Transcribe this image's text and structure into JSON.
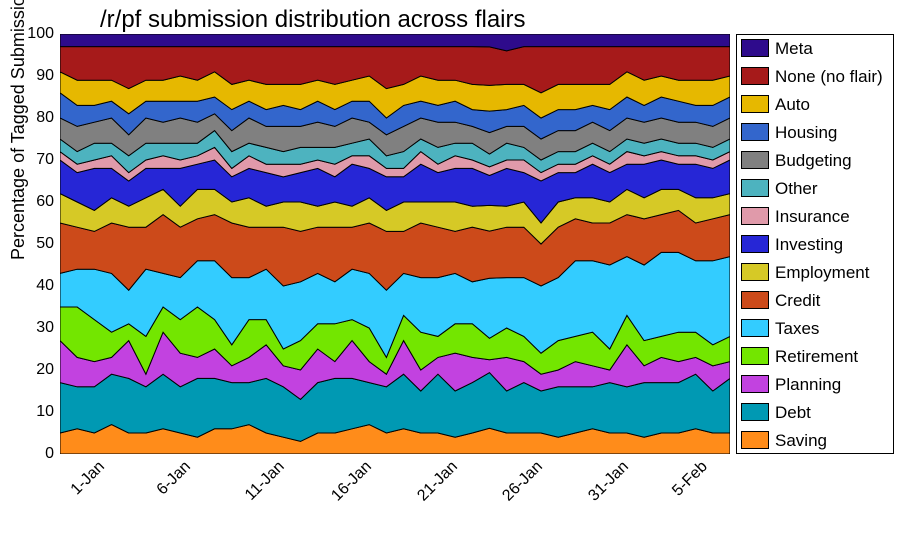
{
  "chart": {
    "type": "stacked-area",
    "title": "/r/pf submission distribution across flairs",
    "title_fontsize": 24,
    "ylabel": "Percentage of Tagged Submissions",
    "ylabel_fontsize": 18,
    "background_color": "#ffffff",
    "plot_border_color": "#000000",
    "ylim": [
      0,
      100
    ],
    "ytick_step": 10,
    "yticks": [
      0,
      10,
      20,
      30,
      40,
      50,
      60,
      70,
      80,
      90,
      100
    ],
    "x_count": 40,
    "xtick_indices": [
      0,
      5,
      10,
      15,
      20,
      25,
      30,
      35
    ],
    "xtick_labels": [
      "1-Jan",
      "6-Jan",
      "11-Jan",
      "16-Jan",
      "21-Jan",
      "26-Jan",
      "31-Jan",
      "5-Feb"
    ],
    "series_stroke": "#000000",
    "series_stroke_width": 1,
    "legend_order": [
      "Meta",
      "None (no flair)",
      "Auto",
      "Housing",
      "Budgeting",
      "Other",
      "Insurance",
      "Investing",
      "Employment",
      "Credit",
      "Taxes",
      "Retirement",
      "Planning",
      "Debt",
      "Saving"
    ],
    "series": [
      {
        "name": "Saving",
        "color": "#ff8c1a",
        "values": [
          5,
          6,
          5,
          7,
          5,
          5,
          6,
          5,
          4,
          6,
          6,
          7,
          5,
          4,
          3,
          5,
          5,
          6,
          7,
          5,
          6,
          5,
          5,
          4,
          5,
          6,
          5,
          5,
          5,
          4,
          5,
          6,
          5,
          5,
          4,
          5,
          5,
          6,
          5,
          5
        ]
      },
      {
        "name": "Debt",
        "color": "#0099b3",
        "values": [
          12,
          10,
          11,
          12,
          13,
          11,
          13,
          11,
          14,
          12,
          11,
          10,
          13,
          12,
          10,
          12,
          13,
          12,
          10,
          11,
          13,
          10,
          14,
          11,
          12,
          13,
          10,
          12,
          10,
          12,
          11,
          10,
          12,
          11,
          13,
          12,
          12,
          13,
          10,
          13
        ]
      },
      {
        "name": "Planning",
        "color": "#c242e0",
        "values": [
          10,
          7,
          6,
          4,
          9,
          3,
          10,
          8,
          5,
          7,
          4,
          6,
          8,
          5,
          7,
          8,
          4,
          9,
          5,
          3,
          8,
          5,
          4,
          9,
          6,
          3,
          8,
          5,
          4,
          4,
          6,
          5,
          3,
          10,
          4,
          6,
          5,
          4,
          6,
          4
        ]
      },
      {
        "name": "Retirement",
        "color": "#73e600",
        "values": [
          8,
          12,
          10,
          6,
          4,
          9,
          6,
          8,
          12,
          7,
          5,
          9,
          6,
          4,
          7,
          6,
          9,
          5,
          8,
          4,
          6,
          9,
          5,
          7,
          8,
          5,
          7,
          6,
          5,
          7,
          6,
          8,
          5,
          7,
          6,
          5,
          7,
          6,
          5,
          6
        ]
      },
      {
        "name": "Taxes",
        "color": "#33ccff",
        "values": [
          8,
          9,
          12,
          14,
          8,
          16,
          8,
          10,
          11,
          14,
          16,
          10,
          12,
          15,
          14,
          12,
          10,
          12,
          13,
          16,
          10,
          13,
          14,
          12,
          10,
          14,
          12,
          14,
          16,
          15,
          18,
          17,
          20,
          14,
          18,
          20,
          19,
          17,
          20,
          19
        ]
      },
      {
        "name": "Credit",
        "color": "#cc4a1a",
        "values": [
          12,
          10,
          9,
          12,
          15,
          10,
          14,
          12,
          10,
          11,
          13,
          12,
          10,
          14,
          12,
          11,
          13,
          10,
          12,
          14,
          10,
          13,
          12,
          10,
          13,
          11,
          12,
          12,
          10,
          12,
          10,
          9,
          10,
          10,
          11,
          9,
          10,
          9,
          10,
          10
        ]
      },
      {
        "name": "Employment",
        "color": "#d6c926",
        "values": [
          7,
          6,
          5,
          6,
          5,
          7,
          6,
          5,
          7,
          6,
          5,
          7,
          5,
          6,
          7,
          5,
          6,
          5,
          6,
          5,
          7,
          5,
          6,
          7,
          5,
          6,
          5,
          6,
          5,
          6,
          5,
          6,
          5,
          6,
          5,
          6,
          5,
          6,
          5,
          5
        ]
      },
      {
        "name": "Investing",
        "color": "#2626d6",
        "values": [
          8,
          7,
          10,
          7,
          6,
          7,
          5,
          9,
          6,
          7,
          6,
          7,
          8,
          6,
          7,
          9,
          6,
          10,
          7,
          8,
          6,
          9,
          7,
          8,
          9,
          7,
          9,
          7,
          10,
          7,
          6,
          8,
          7,
          6,
          8,
          7,
          6,
          8,
          7,
          8
        ]
      },
      {
        "name": "Insurance",
        "color": "#e09aaa",
        "values": [
          2,
          2,
          2,
          3,
          2,
          2,
          3,
          2,
          2,
          3,
          2,
          3,
          2,
          3,
          2,
          2,
          3,
          2,
          3,
          2,
          2,
          3,
          2,
          3,
          2,
          2,
          2,
          3,
          2,
          2,
          2,
          2,
          2,
          3,
          2,
          2,
          2,
          2,
          2,
          2
        ]
      },
      {
        "name": "Other",
        "color": "#4db3bf",
        "values": [
          3,
          3,
          4,
          3,
          4,
          4,
          3,
          4,
          3,
          4,
          4,
          3,
          4,
          3,
          4,
          3,
          4,
          3,
          4,
          3,
          4,
          3,
          4,
          3,
          4,
          3,
          4,
          3,
          3,
          3,
          3,
          3,
          3,
          3,
          3,
          3,
          3,
          3,
          3,
          3
        ]
      },
      {
        "name": "Budgeting",
        "color": "#808080",
        "values": [
          5,
          6,
          5,
          6,
          5,
          6,
          5,
          6,
          5,
          4,
          5,
          6,
          5,
          6,
          5,
          6,
          5,
          6,
          4,
          5,
          6,
          5,
          6,
          5,
          4,
          5,
          4,
          5,
          5,
          5,
          5,
          5,
          5,
          5,
          5,
          5,
          5,
          5,
          5,
          5
        ]
      },
      {
        "name": "Housing",
        "color": "#3366cc",
        "values": [
          6,
          5,
          4,
          4,
          5,
          4,
          5,
          4,
          5,
          4,
          5,
          4,
          4,
          5,
          4,
          5,
          4,
          4,
          5,
          4,
          5,
          4,
          4,
          5,
          4,
          5,
          4,
          5,
          5,
          5,
          5,
          4,
          5,
          5,
          4,
          5,
          5,
          4,
          5,
          5
        ]
      },
      {
        "name": "Auto",
        "color": "#e6b800",
        "values": [
          5,
          6,
          6,
          5,
          6,
          5,
          5,
          6,
          5,
          6,
          6,
          5,
          6,
          5,
          6,
          5,
          6,
          5,
          6,
          7,
          5,
          6,
          6,
          5,
          6,
          6,
          6,
          5,
          6,
          6,
          6,
          5,
          6,
          6,
          6,
          5,
          5,
          6,
          6,
          5
        ]
      },
      {
        "name": "None (no flair)",
        "color": "#a61a1a",
        "values": [
          6,
          8,
          8,
          8,
          10,
          8,
          8,
          7,
          8,
          6,
          9,
          8,
          9,
          9,
          9,
          8,
          9,
          8,
          7,
          10,
          9,
          7,
          8,
          8,
          9,
          9,
          8,
          9,
          11,
          9,
          9,
          9,
          9,
          6,
          8,
          7,
          8,
          8,
          8,
          7
        ]
      },
      {
        "name": "Meta",
        "color": "#2e0b8c",
        "values": [
          3,
          3,
          3,
          3,
          3,
          3,
          3,
          3,
          3,
          3,
          3,
          3,
          3,
          3,
          3,
          3,
          3,
          3,
          3,
          3,
          3,
          3,
          3,
          3,
          3,
          3,
          4,
          3,
          3,
          3,
          3,
          3,
          3,
          3,
          3,
          3,
          3,
          3,
          3,
          3
        ]
      }
    ]
  }
}
